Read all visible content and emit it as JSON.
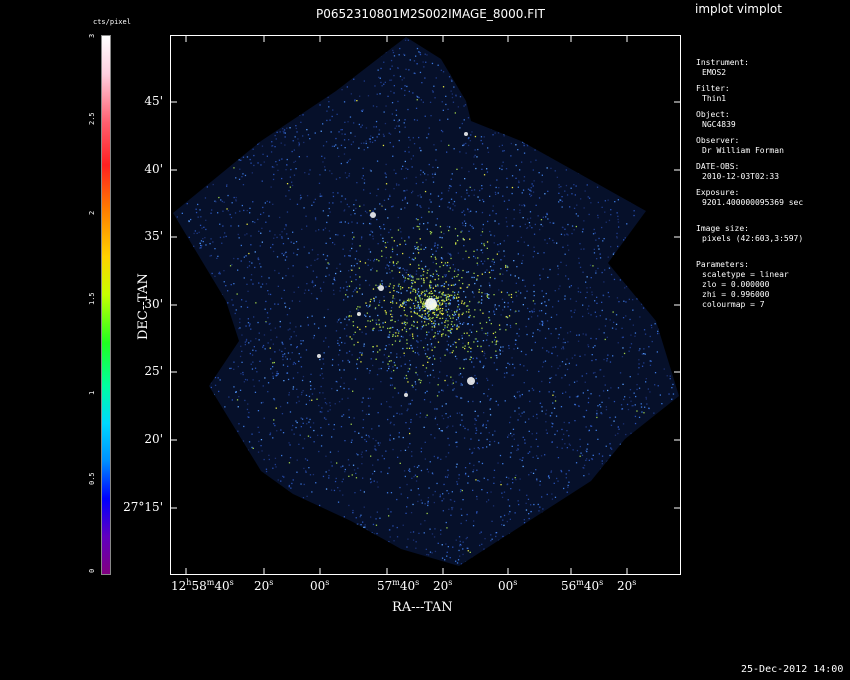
{
  "window_title": "implot vimplot",
  "image_title": "P0652310801M2S002IMAGE_8000.FIT",
  "colorbar": {
    "unit": "cts/pixel",
    "ticks": [
      "3",
      "2.5",
      "2",
      "1.5",
      "1",
      "0.5",
      "0"
    ]
  },
  "axes": {
    "xlabel": "RA---TAN",
    "ylabel": "DEC--TAN",
    "dec_ticks": [
      "45'",
      "40'",
      "35'",
      "30'",
      "25'",
      "20'",
      "27°15'"
    ],
    "ra_ticks": [
      "12h58m40s",
      "20s",
      "00s",
      "57m40s",
      "20s",
      "00s",
      "56m40s",
      "20s"
    ]
  },
  "info": {
    "instrument_label": "Instrument:",
    "instrument": "EMOS2",
    "filter_label": "Filter:",
    "filter": "Thin1",
    "object_label": "Object:",
    "object": "NGC4839",
    "observer_label": "Observer:",
    "observer": "Dr William Forman",
    "date_label": "DATE-OBS:",
    "date": "2010-12-03T02:33",
    "exposure_label": "Exposure:",
    "exposure": "9201.400000095369 sec",
    "imagesize_label": "Image size:",
    "imagesize": "pixels (42:603,3:597)",
    "parameters_label": "Parameters:",
    "scaletype": "scaletype = linear",
    "zlo": "zlo = 0.000000",
    "zhi": "zhi = 0.996000",
    "colourmap": "colourmap =   7"
  },
  "timestamp": "25-Dec-2012 14:00"
}
